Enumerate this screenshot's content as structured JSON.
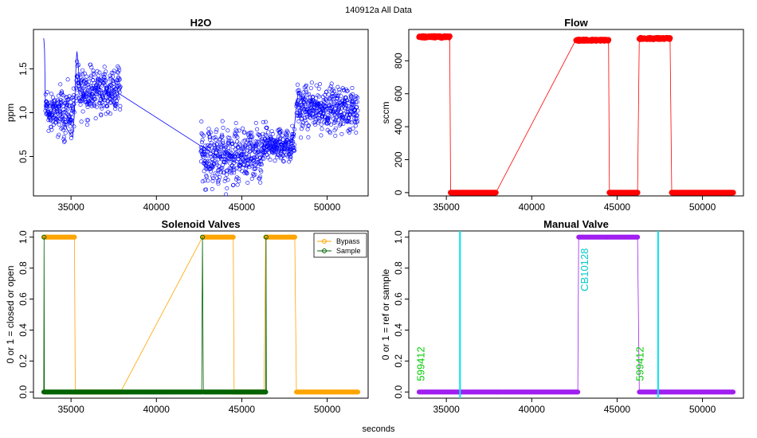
{
  "page": {
    "title": "140912a   All Data",
    "xlabel": "seconds"
  },
  "chart_data": [
    {
      "type": "scatter",
      "title": "H2O",
      "xlabel": "",
      "ylabel": "ppm",
      "xlim": [
        32800,
        52400
      ],
      "ylim": [
        0.05,
        1.95
      ],
      "xticks": [
        35000,
        40000,
        45000,
        50000
      ],
      "yticks": [
        0.5,
        1.0,
        1.5
      ],
      "grid": false,
      "series": [
        {
          "color": "#0000ff",
          "marker": "open-circle",
          "connected": true,
          "points": [
            [
              33400,
              1.85
            ],
            [
              33450,
              1.72
            ],
            [
              33500,
              1.05
            ],
            [
              33700,
              0.95
            ],
            [
              34000,
              1.08
            ],
            [
              34300,
              1.15
            ],
            [
              34500,
              0.92
            ],
            [
              34800,
              0.8
            ],
            [
              35100,
              0.72
            ],
            [
              35200,
              1.0
            ],
            [
              35300,
              1.6
            ],
            [
              35350,
              1.7
            ],
            [
              35500,
              1.35
            ],
            [
              35800,
              1.2
            ],
            [
              36000,
              1.1
            ],
            [
              36300,
              1.28
            ],
            [
              36600,
              1.22
            ],
            [
              36900,
              1.15
            ],
            [
              37200,
              1.3
            ],
            [
              37500,
              1.38
            ],
            [
              37800,
              1.22
            ],
            [
              42600,
              0.62
            ],
            [
              42800,
              0.6
            ],
            [
              43200,
              0.55
            ],
            [
              43600,
              0.5
            ],
            [
              44000,
              0.48
            ],
            [
              44400,
              0.45
            ],
            [
              44800,
              0.42
            ],
            [
              45200,
              0.38
            ],
            [
              45600,
              0.4
            ],
            [
              46000,
              0.45
            ],
            [
              46200,
              0.5
            ],
            [
              46500,
              0.55
            ],
            [
              46800,
              0.6
            ],
            [
              47200,
              0.62
            ],
            [
              47600,
              0.65
            ],
            [
              48000,
              0.7
            ],
            [
              48100,
              0.88
            ],
            [
              48300,
              1.25
            ],
            [
              48700,
              1.05
            ],
            [
              49100,
              0.95
            ],
            [
              49500,
              1.0
            ],
            [
              49900,
              1.05
            ],
            [
              50300,
              1.08
            ],
            [
              50700,
              1.1
            ],
            [
              51100,
              1.12
            ],
            [
              51500,
              1.15
            ],
            [
              51800,
              1.18
            ]
          ],
          "spread_segments": [
            {
              "from": 33500,
              "to": 35200,
              "center": 1.0,
              "spread": 0.18
            },
            {
              "from": 35300,
              "to": 37900,
              "center": 1.25,
              "spread": 0.18
            },
            {
              "from": 42600,
              "to": 46300,
              "center": 0.5,
              "spread": 0.22
            },
            {
              "from": 46300,
              "to": 48100,
              "center": 0.63,
              "spread": 0.13
            },
            {
              "from": 48200,
              "to": 51800,
              "center": 1.05,
              "spread": 0.17
            }
          ]
        }
      ]
    },
    {
      "type": "scatter",
      "title": "Flow",
      "xlabel": "",
      "ylabel": "sccm",
      "xlim": [
        32800,
        52400
      ],
      "ylim": [
        -20,
        990
      ],
      "xticks": [
        35000,
        40000,
        45000,
        50000
      ],
      "yticks": [
        0,
        200,
        400,
        600,
        800
      ],
      "grid": false,
      "series": [
        {
          "color": "#ff0000",
          "marker": "filled-circle",
          "connected": true,
          "points": [
            [
              33400,
              940
            ],
            [
              33600,
              960
            ],
            [
              34000,
              950
            ],
            [
              34500,
              945
            ],
            [
              35100,
              940
            ],
            [
              35200,
              930
            ],
            [
              35250,
              0
            ],
            [
              36000,
              0
            ],
            [
              37000,
              0
            ],
            [
              37900,
              0
            ],
            [
              42600,
              930
            ],
            [
              43000,
              935
            ],
            [
              43600,
              925
            ],
            [
              44200,
              920
            ],
            [
              44500,
              915
            ],
            [
              44550,
              0
            ],
            [
              45200,
              0
            ],
            [
              46200,
              0
            ],
            [
              46300,
              945
            ],
            [
              46600,
              950
            ],
            [
              47200,
              935
            ],
            [
              47800,
              930
            ],
            [
              48100,
              925
            ],
            [
              48200,
              0
            ],
            [
              49000,
              0
            ],
            [
              50000,
              0
            ],
            [
              51000,
              0
            ],
            [
              51800,
              0
            ]
          ],
          "dense_segments": [
            {
              "from": 33400,
              "to": 35200,
              "value": 945,
              "spread": 12
            },
            {
              "from": 35250,
              "to": 37900,
              "value": 0,
              "spread": 0
            },
            {
              "from": 42600,
              "to": 44500,
              "value": 925,
              "spread": 10
            },
            {
              "from": 44550,
              "to": 46200,
              "value": 0,
              "spread": 0
            },
            {
              "from": 46300,
              "to": 48100,
              "value": 935,
              "spread": 10
            },
            {
              "from": 48200,
              "to": 51800,
              "value": 0,
              "spread": 0
            }
          ]
        }
      ]
    },
    {
      "type": "scatter",
      "title": "Solenoid Valves",
      "xlabel": "",
      "ylabel": "0 or 1 = closed or open",
      "xlim": [
        32800,
        52400
      ],
      "ylim": [
        -0.04,
        1.04
      ],
      "xticks": [
        35000,
        40000,
        45000,
        50000
      ],
      "yticks": [
        0.0,
        0.2,
        0.4,
        0.6,
        0.8,
        1.0
      ],
      "grid": false,
      "legend": {
        "position": "top-right",
        "entries": [
          "Bypass",
          "Sample"
        ]
      },
      "series": [
        {
          "name": "Bypass",
          "color": "#ffa500",
          "points": [
            [
              33400,
              1
            ],
            [
              35200,
              1
            ],
            [
              35250,
              0
            ],
            [
              37900,
              0
            ],
            [
              42700,
              1
            ],
            [
              44500,
              1
            ],
            [
              44550,
              0
            ],
            [
              46300,
              0
            ],
            [
              46400,
              1
            ],
            [
              48100,
              1
            ],
            [
              48200,
              0
            ],
            [
              51800,
              0
            ]
          ]
        },
        {
          "name": "Sample",
          "color": "#006400",
          "points": [
            [
              33400,
              0
            ],
            [
              33420,
              1
            ],
            [
              33440,
              0
            ],
            [
              42650,
              0
            ],
            [
              42700,
              1
            ],
            [
              42750,
              0
            ],
            [
              46400,
              0
            ],
            [
              46420,
              1
            ],
            [
              46440,
              0
            ]
          ]
        }
      ]
    },
    {
      "type": "scatter",
      "title": "Manual Valve",
      "xlabel": "",
      "ylabel": "0 or 1 = ref or sample",
      "xlim": [
        32800,
        52400
      ],
      "ylim": [
        -0.04,
        1.04
      ],
      "xticks": [
        35000,
        40000,
        45000,
        50000
      ],
      "yticks": [
        0.0,
        0.2,
        0.4,
        0.6,
        0.8,
        1.0
      ],
      "grid": false,
      "series": [
        {
          "color": "#a020f0",
          "points": [
            [
              33400,
              0
            ],
            [
              38000,
              0
            ],
            [
              42700,
              0
            ],
            [
              42750,
              1
            ],
            [
              46200,
              1
            ],
            [
              46300,
              0
            ],
            [
              51800,
              0
            ]
          ]
        }
      ],
      "vlines": [
        {
          "x": 35800,
          "color": "#00e5ee"
        },
        {
          "x": 47400,
          "color": "#00e5ee"
        }
      ],
      "annotations": [
        {
          "text": "599412",
          "x": 33700,
          "y": 0.07,
          "color": "#00cc00",
          "rotation": -90
        },
        {
          "text": "CB10128",
          "x": 43300,
          "y": 0.65,
          "color": "#00cccc",
          "rotation": -90
        },
        {
          "text": "599412",
          "x": 46550,
          "y": 0.07,
          "color": "#00cc00",
          "rotation": -90
        }
      ]
    }
  ]
}
